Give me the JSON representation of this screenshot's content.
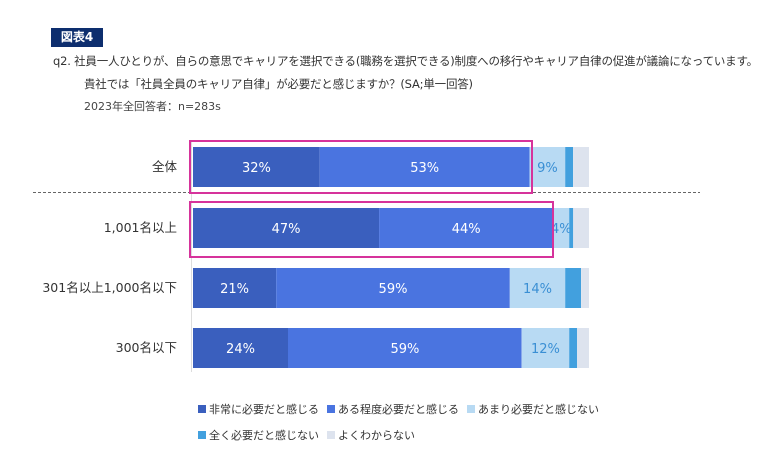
{
  "figure_label": "図表4",
  "question": {
    "line1": "q2. 社員一人ひとりが、自らの意思でキャリアを選択できる(職務を選択できる)制度への移行やキャリア自律の促進が議論になっています。",
    "line2": "貴社では「社員全員のキャリア自律」が必要だと感じますか？(SA;単一回答)"
  },
  "respondents": "2023年全回答者：n=283s",
  "colors": {
    "highlight_border": "#d6339b",
    "divider": "#666666"
  },
  "chart_data": {
    "type": "bar",
    "orientation": "horizontal",
    "stacked": true,
    "normalized": true,
    "title": "",
    "xlabel": "",
    "ylabel": "",
    "xlim": [
      0,
      100
    ],
    "categories": [
      "全体",
      "1,001名以上",
      "301名以上1,000名以下",
      "300名以下"
    ],
    "series": [
      {
        "name": "非常に必要だと感じる",
        "color": "#3a5fbe",
        "label_color": "#ffffff",
        "values": [
          32,
          47,
          21,
          24
        ],
        "value_labels": [
          "32%",
          "47%",
          "21%",
          "24%"
        ]
      },
      {
        "name": "ある程度必要だと感じる",
        "color": "#4a74e0",
        "label_color": "#ffffff",
        "values": [
          53,
          44,
          59,
          59
        ],
        "value_labels": [
          "53%",
          "44%",
          "59%",
          "59%"
        ]
      },
      {
        "name": "あまり必要だと感じない",
        "color": "#b8daf3",
        "label_color": "#3a8fd4",
        "values": [
          9,
          4,
          14,
          12
        ],
        "value_labels": [
          "9%",
          "4%",
          "14%",
          "12%"
        ]
      },
      {
        "name": "全く必要だと感じない",
        "color": "#42a0de",
        "label_color": "#ffffff",
        "values": [
          2,
          1,
          4,
          2
        ],
        "value_labels": [
          "",
          "",
          "",
          ""
        ]
      },
      {
        "name": "よくわからない",
        "color": "#dde3ee",
        "label_color": "#333333",
        "values": [
          4,
          4,
          2,
          3
        ],
        "value_labels": [
          "",
          "",
          "",
          ""
        ]
      }
    ],
    "highlighted_categories": [
      "全体",
      "1,001名以上"
    ],
    "legend": {
      "position": "bottom"
    }
  }
}
